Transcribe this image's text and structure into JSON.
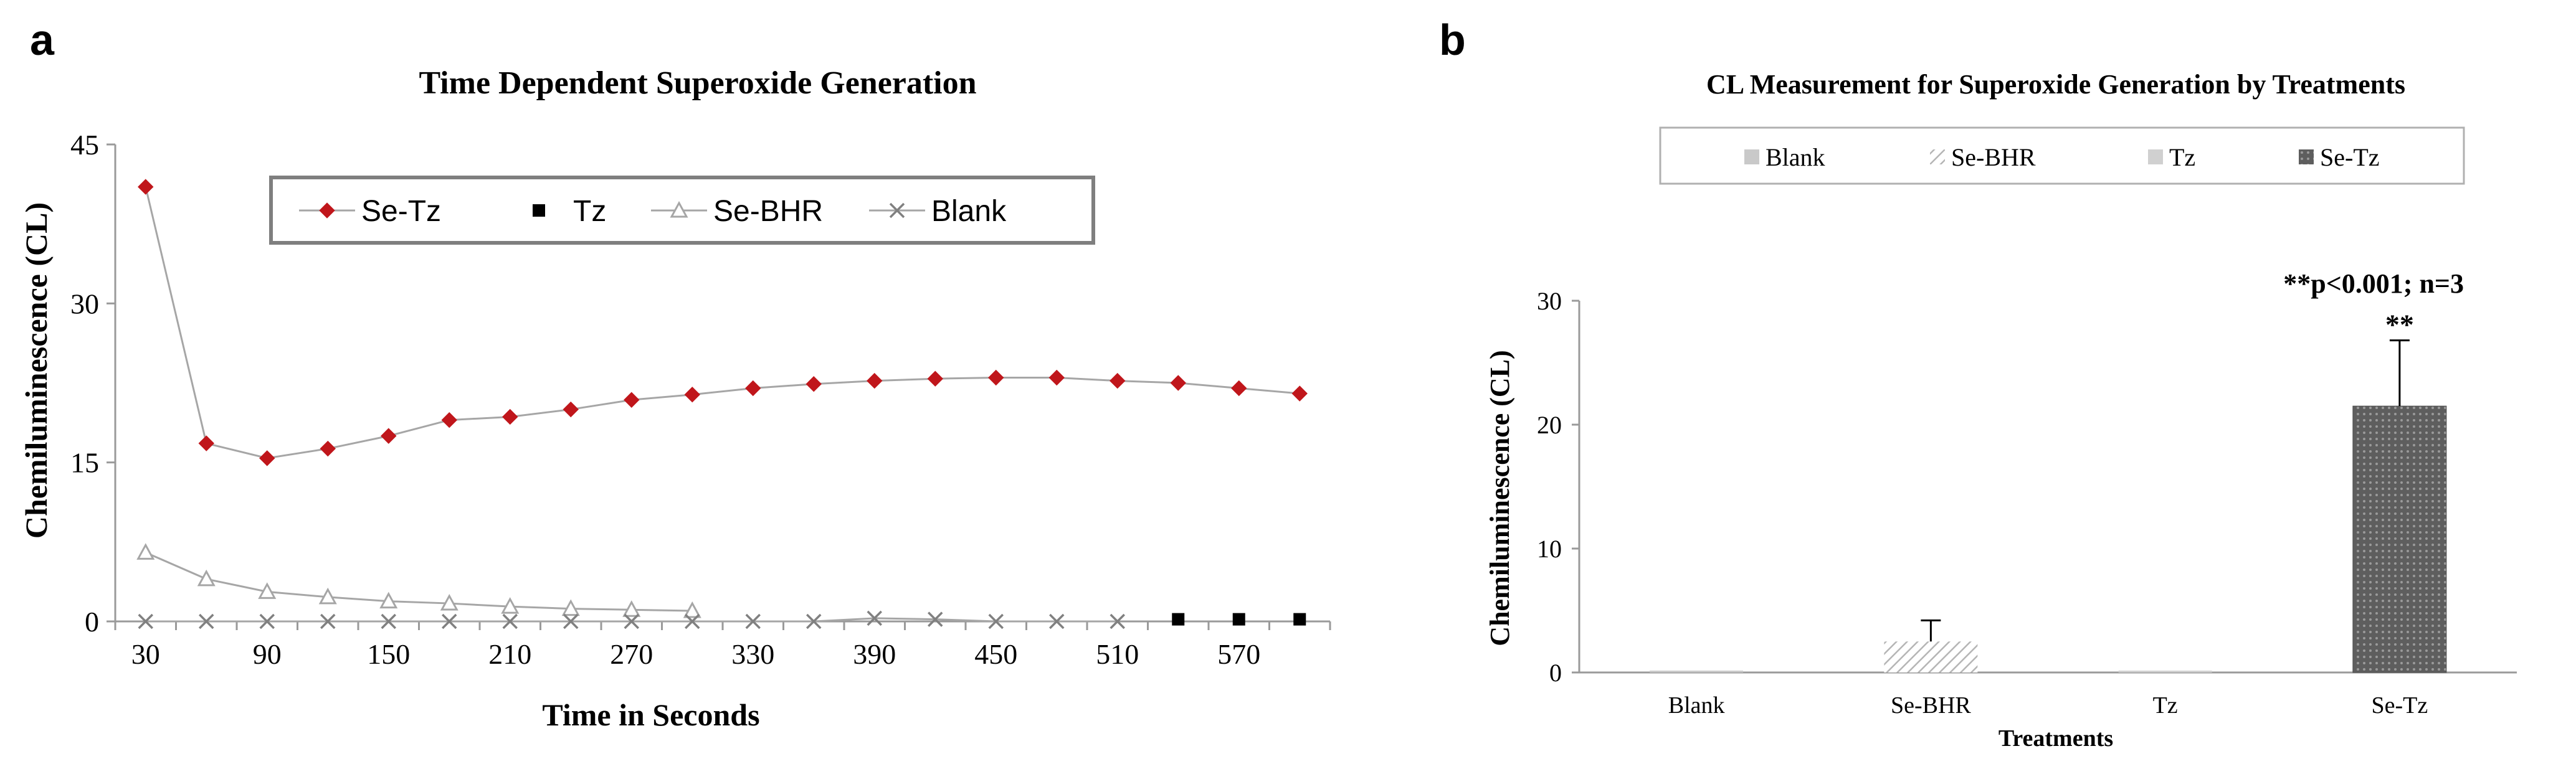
{
  "panel_labels": {
    "a": "a",
    "b": "b"
  },
  "colors": {
    "series_red": "#c0161b",
    "series_gray": "#a6a6a6",
    "axis": "#9a9a9a",
    "bar_fill": "#c9c9c9",
    "bar_dark": "#595959",
    "text": "#000000"
  },
  "chart_data": [
    {
      "type": "line",
      "title": "Time Dependent Superoxide Generation",
      "xlabel": "Time in Seconds",
      "ylabel": "Chemiluminescence (CL)",
      "ylim": [
        0,
        45
      ],
      "yticks": [
        0,
        15,
        30,
        45
      ],
      "xticks": [
        30,
        90,
        150,
        210,
        270,
        330,
        390,
        450,
        510,
        570
      ],
      "x_step_positions": [
        30,
        60,
        90,
        120,
        150,
        180,
        210,
        240,
        270,
        300,
        330,
        360,
        390,
        420,
        450,
        480,
        510,
        540,
        570,
        600
      ],
      "legend": [
        "Se-Tz",
        "Tz",
        "Se-BHR",
        "Blank"
      ],
      "series": [
        {
          "name": "Se-Tz",
          "marker": "diamond",
          "x": [
            30,
            60,
            90,
            120,
            150,
            180,
            210,
            240,
            270,
            300,
            330,
            360,
            390,
            420,
            450,
            480,
            510,
            540,
            570,
            600
          ],
          "values": [
            41,
            16.8,
            15.4,
            16.3,
            17.5,
            19,
            19.3,
            20,
            20.9,
            21.4,
            22,
            22.4,
            22.7,
            22.9,
            23,
            23,
            22.7,
            22.5,
            22,
            21.5
          ]
        },
        {
          "name": "Tz",
          "marker": "square",
          "x": [
            540,
            570,
            600
          ],
          "values": [
            0.2,
            0.2,
            0.2
          ]
        },
        {
          "name": "Se-BHR",
          "marker": "triangle",
          "x": [
            30,
            60,
            90,
            120,
            150,
            180,
            210,
            240,
            270,
            300
          ],
          "values": [
            6.5,
            4,
            2.8,
            2.3,
            1.9,
            1.7,
            1.4,
            1.2,
            1.1,
            1.0
          ]
        },
        {
          "name": "Blank",
          "marker": "x",
          "x": [
            30,
            60,
            90,
            120,
            150,
            180,
            210,
            240,
            270,
            300,
            330,
            360,
            390,
            420,
            450,
            480,
            510
          ],
          "values": [
            0,
            0,
            0,
            0,
            0,
            0,
            0,
            0,
            0,
            0,
            0,
            0,
            0.3,
            0.2,
            0,
            0,
            0
          ]
        }
      ]
    },
    {
      "type": "bar",
      "title": "CL Measurement for Superoxide Generation by Treatments",
      "xlabel": "Treatments",
      "ylabel": "Chemiluminescence (CL)",
      "ylim": [
        0,
        30
      ],
      "yticks": [
        0,
        10,
        20,
        30
      ],
      "categories": [
        "Blank",
        "Se-BHR",
        "Tz",
        "Se-Tz"
      ],
      "values": [
        0.1,
        2.5,
        0.1,
        21.5
      ],
      "errors": [
        0.05,
        1.7,
        0.05,
        5.3
      ],
      "patterns": [
        "solid",
        "diagonal",
        "solid-light",
        "dots"
      ],
      "legend": [
        "Blank",
        "Se-BHR",
        "Tz",
        "Se-Tz"
      ],
      "significance_label": "**",
      "annotation": "**p<0.001; n=3"
    }
  ]
}
